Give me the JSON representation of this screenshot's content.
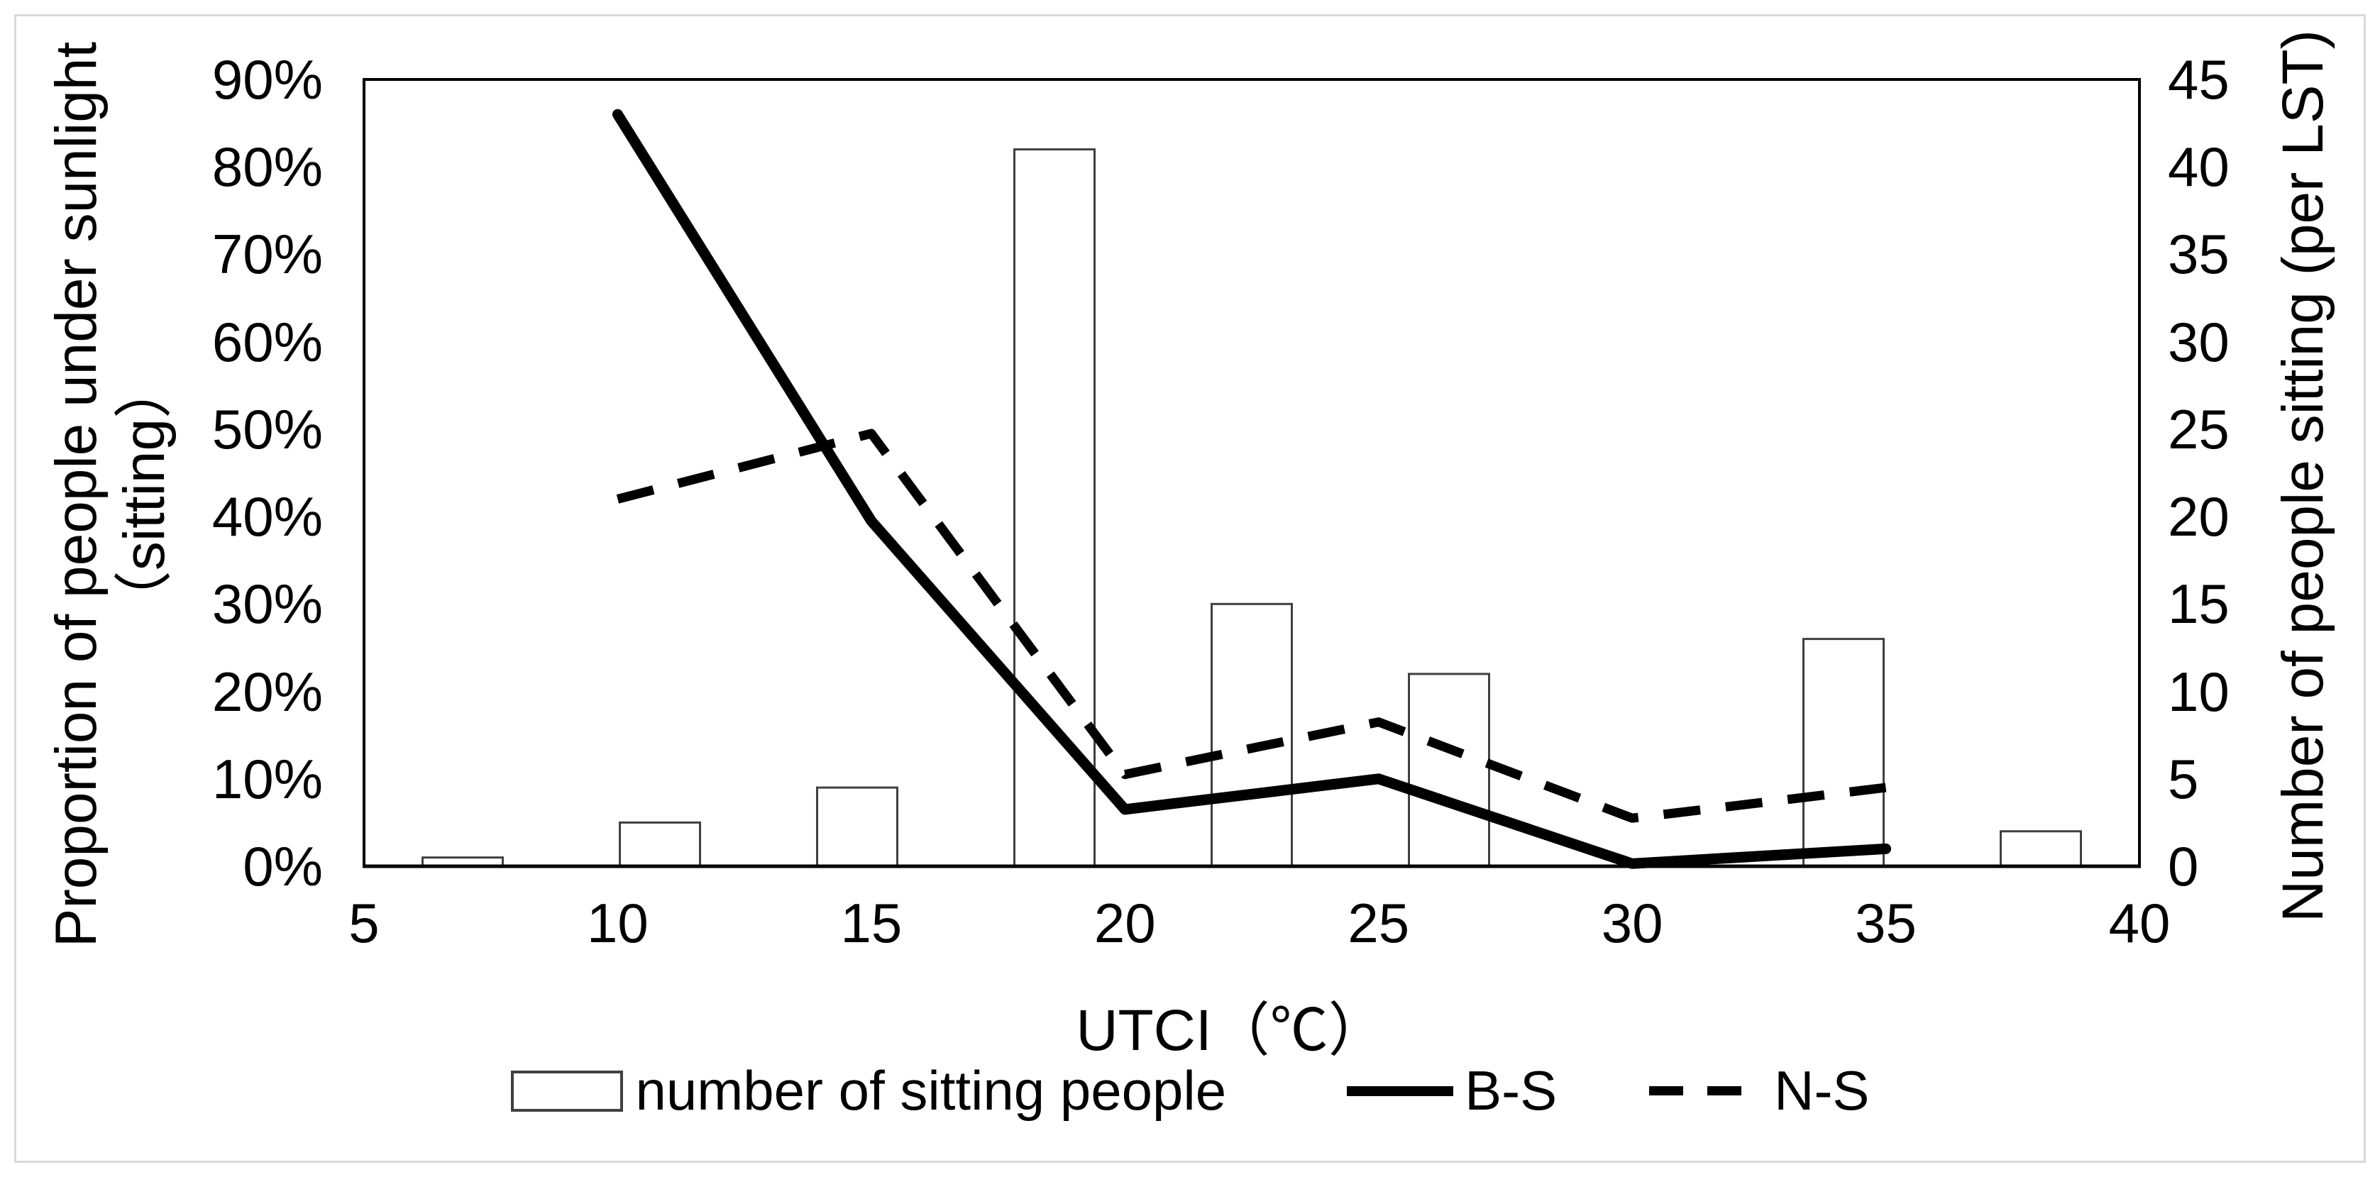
{
  "figure": {
    "background_color": "#ffffff",
    "border_color": "#d9d9d9",
    "ink_color": "#000000",
    "bar_outline_color": "#404040"
  },
  "chart_data": {
    "type": "bar+line combo, dual y-axis",
    "title": "",
    "x_axis": {
      "label": "UTCI（℃）",
      "range": [
        5,
        40
      ],
      "tick_labels": [
        "5",
        "10",
        "15",
        "20",
        "25",
        "30",
        "35",
        "40"
      ],
      "grid": false
    },
    "y_axis_left": {
      "label_line1": "Proportion of people under sunlight",
      "label_line2": "（sitting）",
      "range": [
        0,
        90
      ],
      "unit": "%",
      "tick_labels": [
        "0%",
        "10%",
        "20%",
        "30%",
        "40%",
        "50%",
        "60%",
        "70%",
        "80%",
        "90%"
      ]
    },
    "y_axis_right": {
      "label": "Number of people sitting (per LST)",
      "range": [
        0,
        45
      ],
      "tick_labels": [
        "0",
        "5",
        "10",
        "15",
        "20",
        "25",
        "30",
        "35",
        "40",
        "45"
      ]
    },
    "bars": {
      "name": "number of sitting people",
      "axis": "right",
      "bin_centers_utci": [
        7,
        11,
        15,
        19,
        23,
        27,
        31,
        35,
        39
      ],
      "values": [
        0.5,
        2.5,
        4.5,
        41,
        15,
        11,
        0,
        13,
        2
      ],
      "fill": "#ffffff",
      "outline": "#404040"
    },
    "series": [
      {
        "name": "B-S",
        "style": "solid",
        "axis": "left",
        "x_utci": [
          10,
          15,
          20,
          25,
          30,
          35
        ],
        "values_pct": [
          86,
          39.5,
          6.5,
          10,
          0.3,
          2
        ]
      },
      {
        "name": "N-S",
        "style": "dashed",
        "axis": "left",
        "x_utci": [
          10,
          15,
          20,
          25,
          30,
          35
        ],
        "values_pct": [
          42,
          49.5,
          10.5,
          16.5,
          5.5,
          9
        ]
      }
    ],
    "legend": {
      "position": "bottom-center",
      "items": [
        {
          "label": "number of sitting people",
          "marker": "white-rectangle"
        },
        {
          "label": "B-S",
          "marker": "solid-line"
        },
        {
          "label": "N-S",
          "marker": "dashed-line"
        }
      ]
    }
  }
}
